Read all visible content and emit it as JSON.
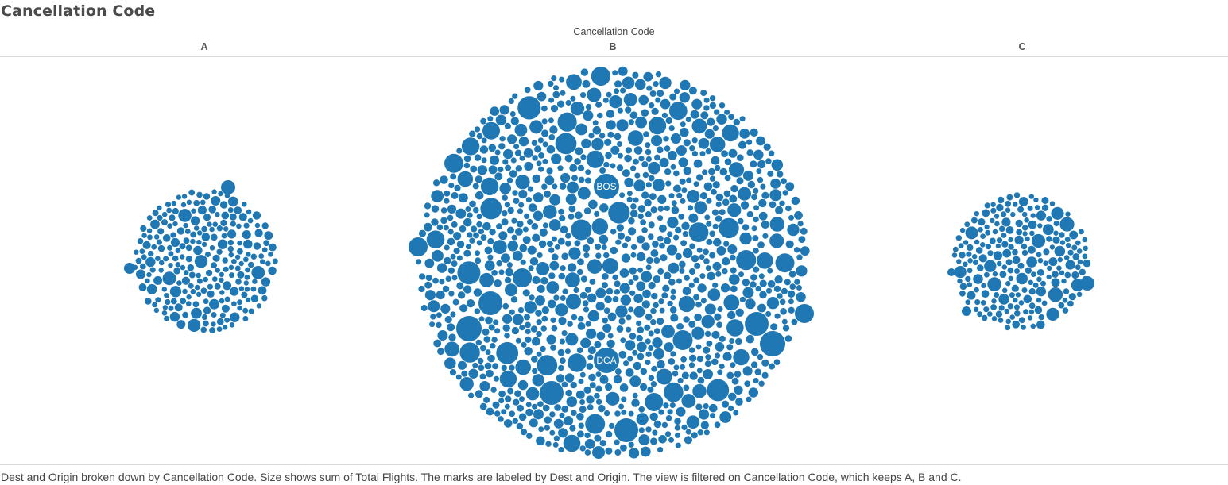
{
  "sheet_title": "Cancellation Code",
  "caption": "Dest and Origin broken down by Cancellation Code.  Size shows sum of Total Flights.  The marks are labeled by Dest and Origin. The view is filtered on Cancellation Code, which keeps A, B and C.",
  "colors": {
    "mark": "#1f77b4",
    "label": "#ffffff",
    "rule": "#d9d9d9"
  },
  "chart_data": {
    "type": "packed-bubble",
    "column_header": "Cancellation Code",
    "panels": [
      {
        "category": "A",
        "labels": []
      },
      {
        "category": "B",
        "labels": [
          "BOS",
          "DCA"
        ]
      },
      {
        "category": "C",
        "labels": []
      }
    ]
  }
}
